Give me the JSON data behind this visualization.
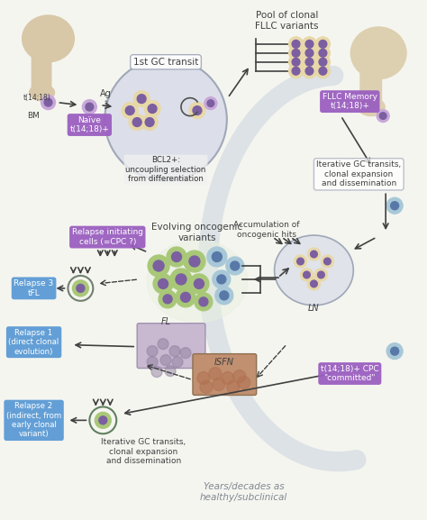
{
  "bg_color": "#f5f5f0",
  "purple_box_color": "#9b5fc0",
  "blue_box_color": "#5b9bd5",
  "light_purple_cell": "#c8a8d8",
  "dark_purple_nucleus": "#7b5fa0",
  "green_cell": "#a8c878",
  "tan_cell": "#e8d8a8",
  "gray_circle_bg": "#d8dce8",
  "arrow_color": "#404040",
  "labels": {
    "bm": "BM",
    "naive": "Naïve\nt(14;18)+",
    "gc_transit": "1st GC transit",
    "bcl2": "BCL2+:\nuncoupling selection\nfrom differentiation",
    "pool": "Pool of clonal\nFLLC variants",
    "fllc_memory": "FLLC Memory\nt(14;18)+",
    "iterative1": "Iterative GC transits,\nclonal expansion\nand dissemination",
    "relapse_init": "Relapse initiating\ncells (=CPC ?)",
    "evolving": "Evolving oncogenic\nvariants",
    "accumulation": "Accumulation of\noncogenic hits",
    "relapse3": "Relapse 3\ntFL",
    "relapse1": "Relapse 1\n(direct clonal\nevolution)",
    "isfn": "ISFN",
    "fl": "FL",
    "ln": "LN",
    "relapse2": "Relapse 2\n(indirect, from\nearly clonal\nvariant)",
    "iterative2": "Iterative GC transits,\nclonal expansion\nand dissemination",
    "committed": "t(14;18)+ CPC\n\"committed\"",
    "years": "Years/decades as\nhealthy/subclinical",
    "ag": "Ag"
  }
}
